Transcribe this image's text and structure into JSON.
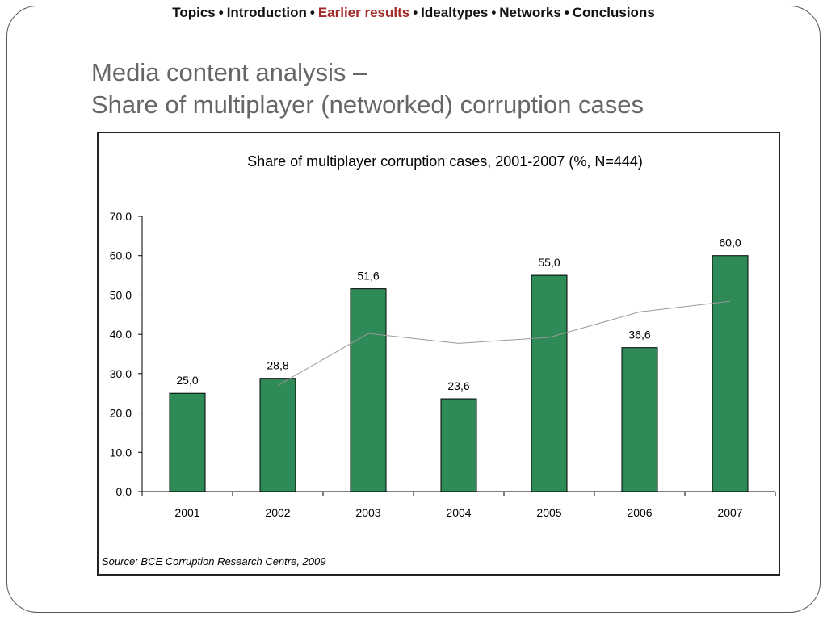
{
  "nav": {
    "items": [
      "Topics",
      "Introduction",
      "Earlier results",
      "Idealtypes",
      "Networks",
      "Conclusions"
    ],
    "active_index": 2,
    "separator": "•",
    "active_color": "#a52a2a"
  },
  "slide": {
    "title_line1": "Media content analysis –",
    "title_line2": "Share of multiplayer (networked) corruption cases"
  },
  "chart_data": {
    "type": "bar",
    "title": "Share of multiplayer corruption cases, 2001-2007 (%, N=444)",
    "categories": [
      "2001",
      "2002",
      "2003",
      "2004",
      "2005",
      "2006",
      "2007"
    ],
    "values": [
      25.0,
      28.8,
      51.6,
      23.6,
      55.0,
      36.6,
      60.0
    ],
    "data_labels": [
      "25,0",
      "28,8",
      "51,6",
      "23,6",
      "55,0",
      "36,6",
      "60,0"
    ],
    "trend_line": {
      "x_from": "2002",
      "values": [
        27,
        40.2,
        37.7,
        39.2,
        45.7,
        48.4
      ]
    },
    "ylim": [
      0,
      70
    ],
    "yticks": [
      "0,0",
      "10,0",
      "20,0",
      "30,0",
      "40,0",
      "50,0",
      "60,0",
      "70,0"
    ],
    "grid": false,
    "bar_color": "#2e8b57",
    "source": "Source: BCE Corruption Research Centre, 2009"
  }
}
